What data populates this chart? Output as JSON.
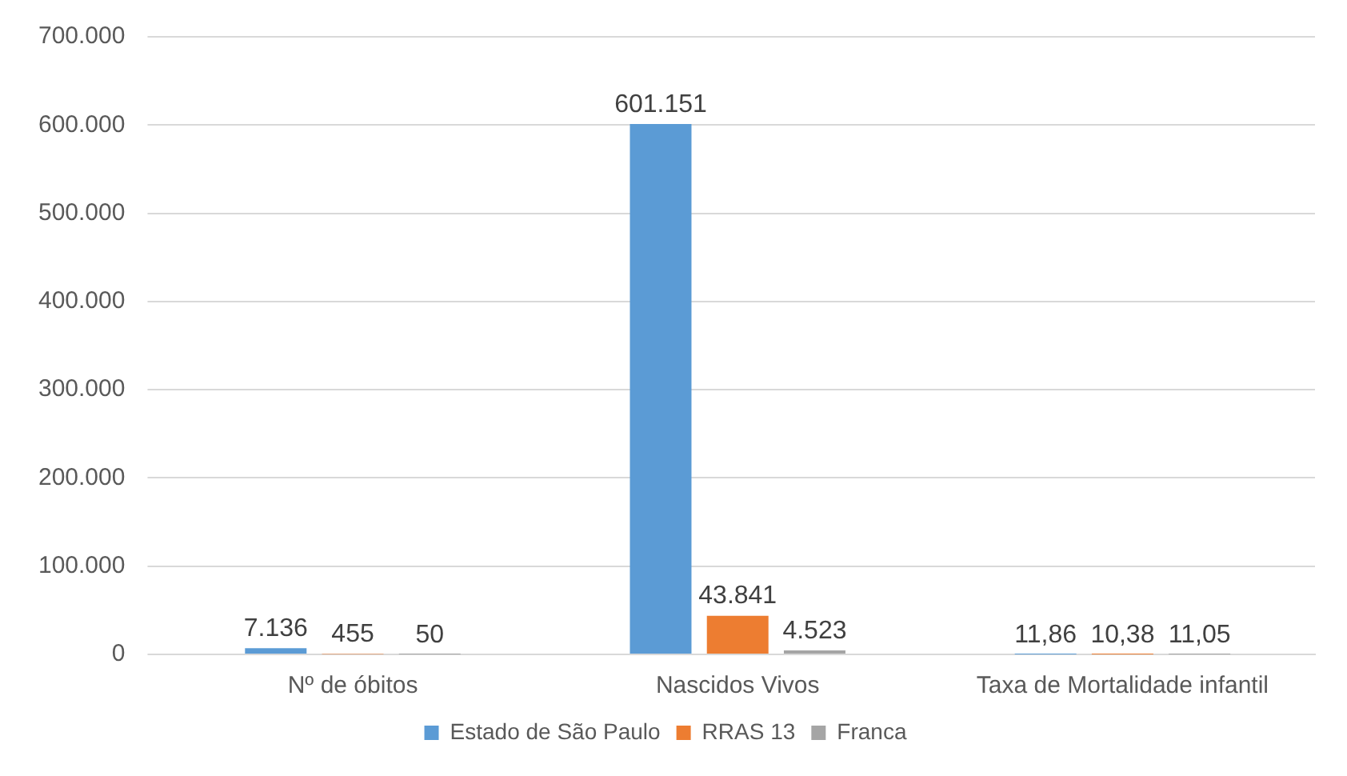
{
  "chart_data": {
    "type": "bar",
    "categories": [
      "Nº de óbitos",
      "Nascidos Vivos",
      "Taxa de Mortalidade infantil"
    ],
    "series": [
      {
        "name": "Estado de São Paulo",
        "color": "#5b9bd5",
        "values": [
          7136,
          601151,
          11.86
        ],
        "value_labels": [
          "7.136",
          "601.151",
          "11,86"
        ]
      },
      {
        "name": "RRAS 13",
        "color": "#ed7d31",
        "values": [
          455,
          43841,
          10.38
        ],
        "value_labels": [
          "455",
          "43.841",
          "10,38"
        ]
      },
      {
        "name": "Franca",
        "color": "#a5a5a5",
        "values": [
          50,
          4523,
          11.05
        ],
        "value_labels": [
          "50",
          "4.523",
          "11,05"
        ]
      }
    ],
    "ylim": [
      0,
      700000
    ],
    "yticks": [
      {
        "value": 0,
        "label": "0"
      },
      {
        "value": 100000,
        "label": "100.000"
      },
      {
        "value": 200000,
        "label": "200.000"
      },
      {
        "value": 300000,
        "label": "300.000"
      },
      {
        "value": 400000,
        "label": "400.000"
      },
      {
        "value": 500000,
        "label": "500.000"
      },
      {
        "value": 600000,
        "label": "600.000"
      },
      {
        "value": 700000,
        "label": "700.000"
      }
    ],
    "grid": "y",
    "legend": "bottom"
  }
}
